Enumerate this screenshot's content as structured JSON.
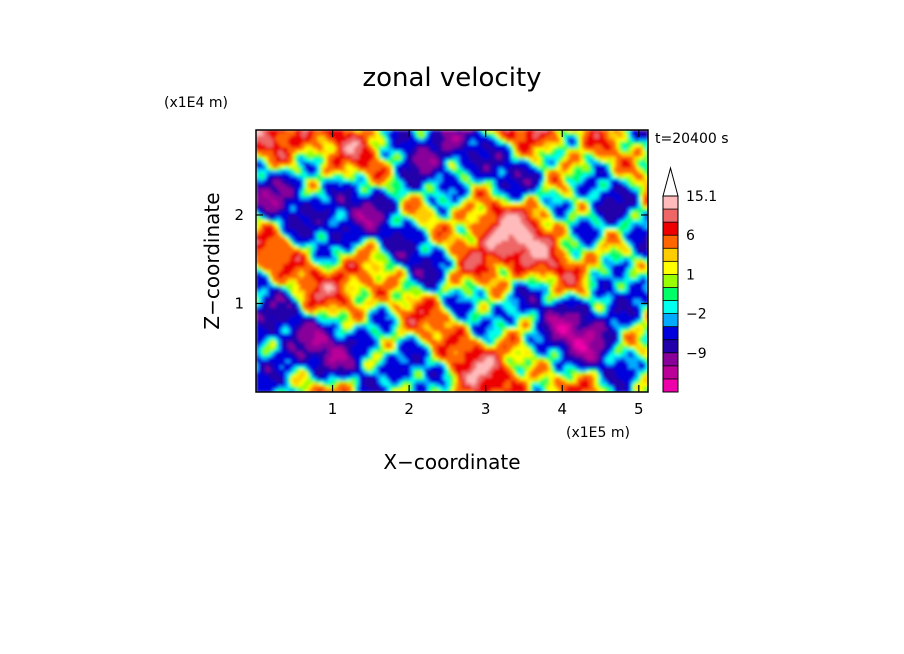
{
  "chart_data": {
    "type": "heatmap",
    "title": "zonal velocity",
    "xlabel": "X−coordinate",
    "ylabel": "Z−coordinate",
    "x_unit": "(x1E5 m)",
    "y_unit": "(x1E4 m)",
    "time_label": "t=20400 s",
    "xlim": [
      0.0,
      5.12
    ],
    "ylim": [
      0.0,
      2.96
    ],
    "x_ticks": [
      {
        "value": 1,
        "label": "1"
      },
      {
        "value": 2,
        "label": "2"
      },
      {
        "value": 3,
        "label": "3"
      },
      {
        "value": 4,
        "label": "4"
      },
      {
        "value": 5,
        "label": "5"
      }
    ],
    "y_ticks": [
      {
        "value": 1,
        "label": "1"
      },
      {
        "value": 2,
        "label": "2"
      }
    ],
    "colorbar": {
      "levels": [
        -15,
        -12,
        -9,
        -6,
        -3,
        -2,
        -1,
        0,
        1,
        2,
        3,
        6,
        9,
        12,
        15.1
      ],
      "colors": [
        "#ee00aa",
        "#bb0099",
        "#880099",
        "#2200aa",
        "#0000dd",
        "#00aaff",
        "#00ffee",
        "#00ff66",
        "#99ff00",
        "#ffff00",
        "#ffcc00",
        "#ff6600",
        "#ee0000",
        "#ee6666",
        "#ffbbbb"
      ],
      "labels": [
        {
          "value": 15.1,
          "label": "15.1"
        },
        {
          "value": 6,
          "label": "6"
        },
        {
          "value": 1,
          "label": "1"
        },
        {
          "value": -2,
          "label": "−2"
        },
        {
          "value": -9,
          "label": "−9"
        }
      ],
      "extend_max": true
    }
  }
}
